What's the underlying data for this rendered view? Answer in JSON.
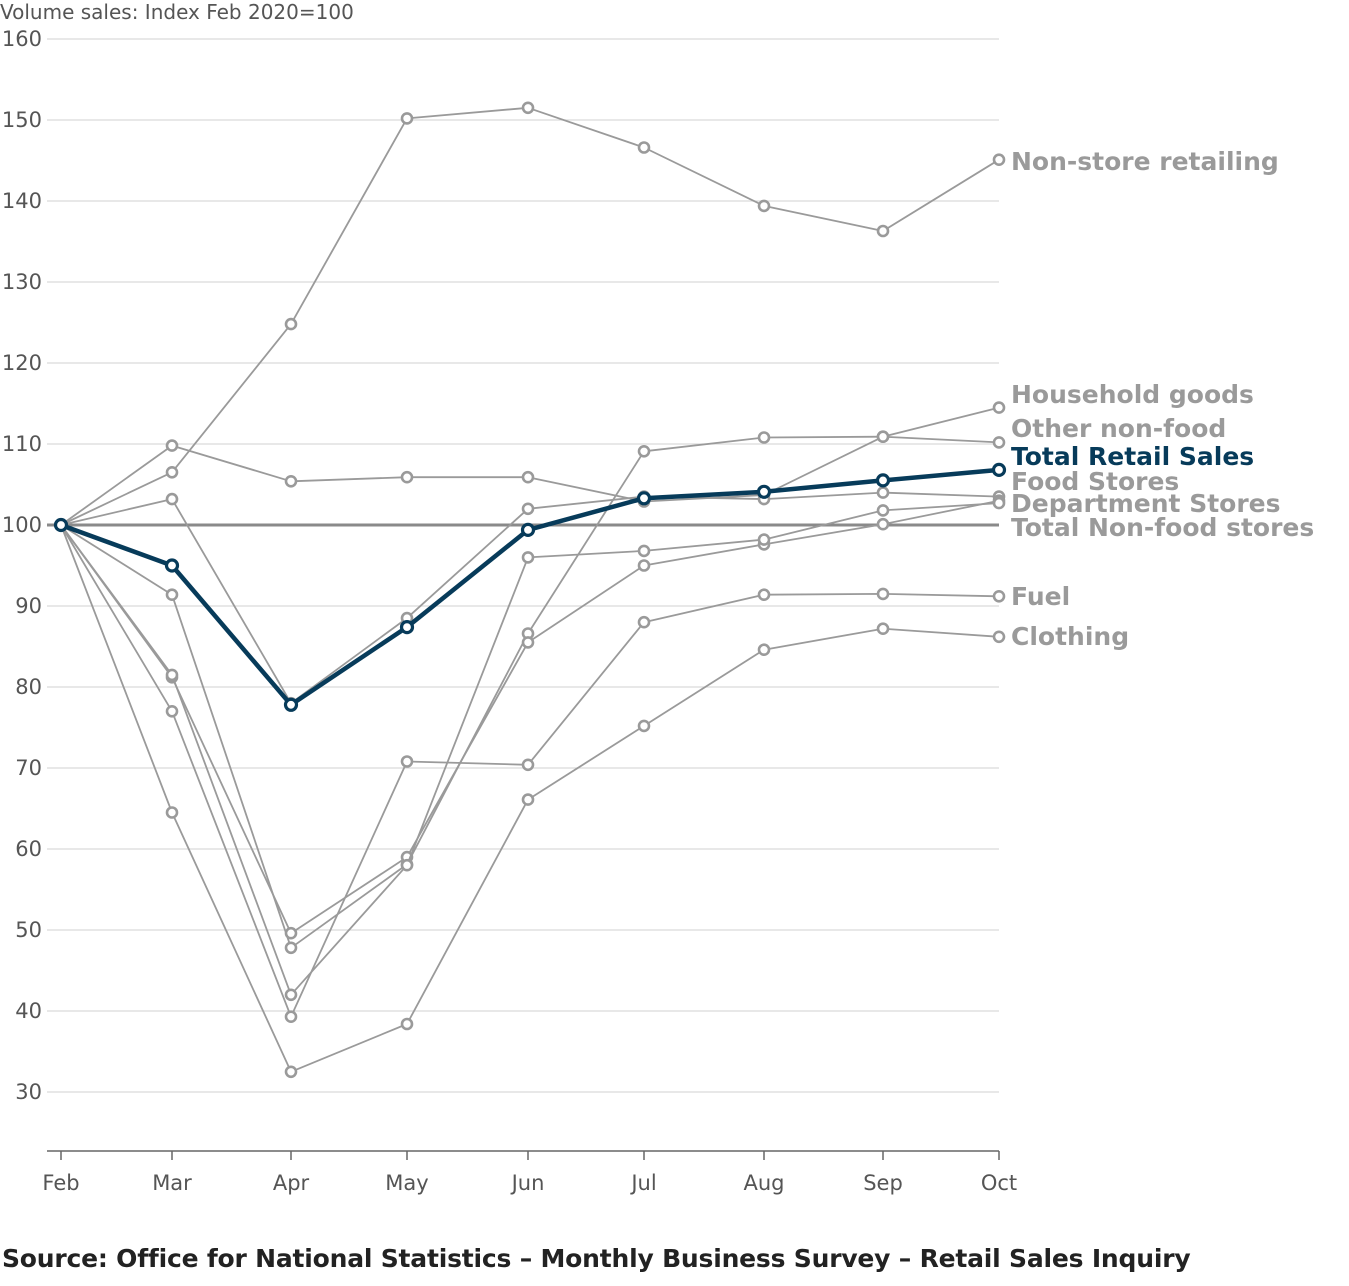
{
  "chart_data": {
    "type": "line",
    "ylabel": "Volume sales: Index Feb 2020=100",
    "categories": [
      "Feb",
      "Mar",
      "Apr",
      "May",
      "Jun",
      "Jul",
      "Aug",
      "Sep",
      "Oct"
    ],
    "ylim": [
      23,
      160
    ],
    "yticks": [
      30,
      40,
      50,
      60,
      70,
      80,
      90,
      100,
      110,
      120,
      130,
      140,
      150,
      160
    ],
    "reference_line": 100,
    "grid": true,
    "legend": "direct labels at right end of each line",
    "colors": {
      "highlight": "#073b5a",
      "other": "#9a9a9a",
      "reference": "#8a8a8a",
      "grid": "#d9d9d9"
    },
    "series": [
      {
        "name": "Non-store retailing",
        "values": [
          100,
          106.5,
          124.8,
          150.2,
          151.5,
          146.6,
          139.4,
          136.3,
          145.1
        ]
      },
      {
        "name": "Household goods",
        "values": [
          100,
          91.4,
          47.8,
          58.1,
          86.6,
          109.1,
          110.8,
          110.9,
          114.5
        ]
      },
      {
        "name": "Other non-food",
        "values": [
          100,
          109.8,
          105.4,
          105.9,
          105.9,
          102.9,
          103.7,
          110.9,
          110.2
        ]
      },
      {
        "name": "Total Retail Sales",
        "values": [
          100,
          95.0,
          77.8,
          87.4,
          99.4,
          103.3,
          104.1,
          105.5,
          106.8
        ],
        "highlight": true
      },
      {
        "name": "Food Stores",
        "values": [
          100,
          103.2,
          78.0,
          88.5,
          102.0,
          103.5,
          103.2,
          104.0,
          103.5
        ]
      },
      {
        "name": "Department Stores",
        "values": [
          100,
          81.2,
          49.6,
          59.0,
          85.5,
          95.0,
          97.6,
          100.1,
          103.0
        ]
      },
      {
        "name": "Total Non-food stores",
        "values": [
          100,
          81.5,
          42.0,
          58.0,
          96.0,
          96.8,
          98.2,
          101.8,
          102.7
        ]
      },
      {
        "name": "Fuel",
        "values": [
          100,
          77.0,
          39.3,
          70.8,
          70.4,
          88.0,
          91.4,
          91.5,
          91.2
        ]
      },
      {
        "name": "Clothing",
        "values": [
          100,
          64.5,
          32.5,
          38.4,
          66.1,
          75.2,
          84.6,
          87.2,
          86.2
        ]
      }
    ]
  },
  "source": "Source: Office for National Statistics – Monthly Business Survey – Retail Sales Inquiry"
}
